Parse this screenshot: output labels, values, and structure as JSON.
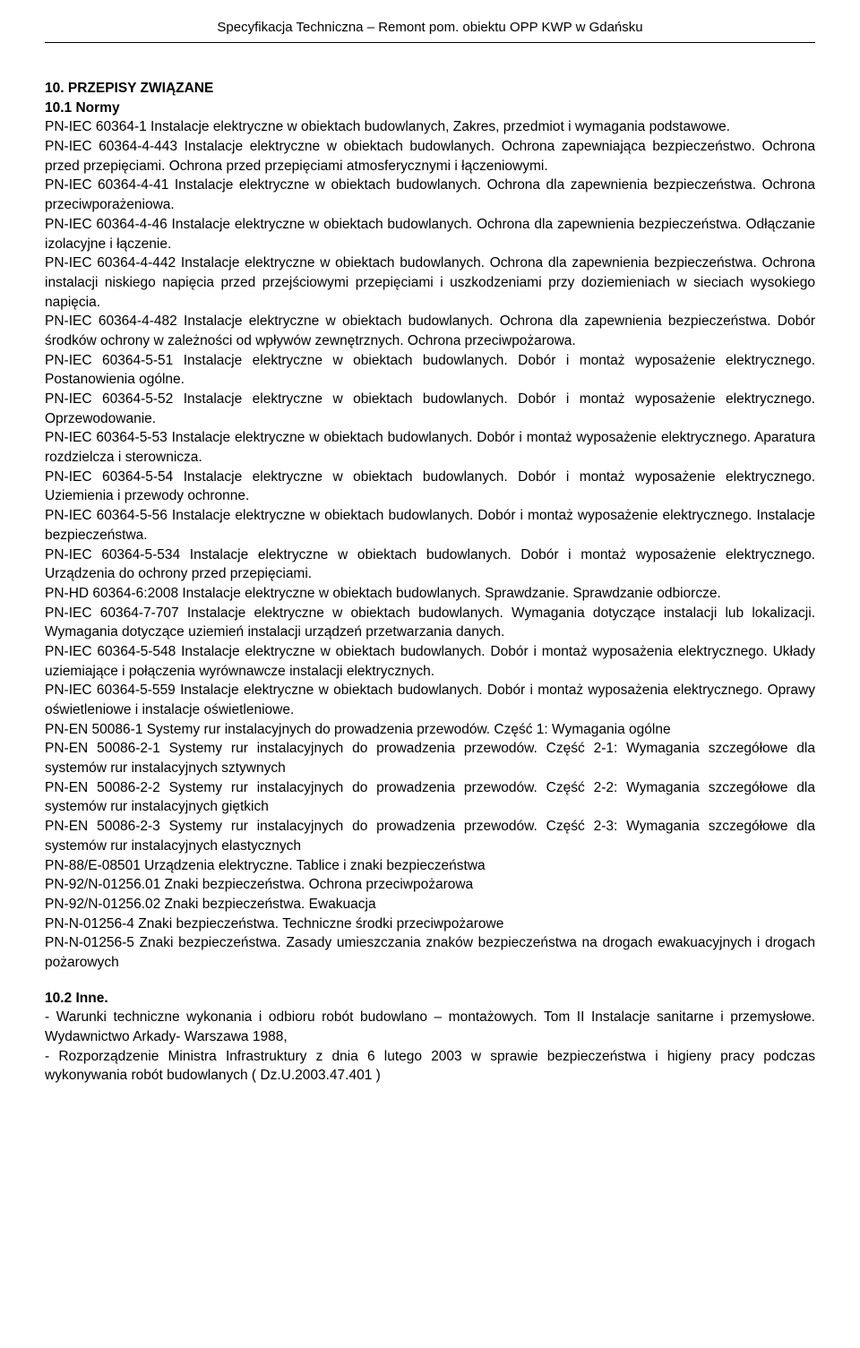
{
  "header": "Specyfikacja Techniczna – Remont pom. obiektu OPP KWP w Gdańsku",
  "section10": {
    "title": "10. PRZEPISY ZWIĄZANE",
    "sub1": {
      "title": "10.1 Normy",
      "paragraphs": [
        "PN-IEC 60364-1 Instalacje elektryczne w obiektach budowlanych, Zakres, przedmiot i wymagania podstawowe.",
        "PN-IEC 60364-4-443 Instalacje elektryczne w obiektach budowlanych. Ochrona zapewniająca bezpieczeństwo. Ochrona przed przepięciami. Ochrona przed przepięciami atmosferycznymi i łączeniowymi.",
        "PN-IEC 60364-4-41 Instalacje elektryczne w obiektach budowlanych. Ochrona dla zapewnienia bezpieczeństwa. Ochrona przeciwporażeniowa.",
        "PN-IEC 60364-4-46 Instalacje elektryczne w obiektach budowlanych. Ochrona dla zapewnienia bezpieczeństwa. Odłączanie izolacyjne i łączenie.",
        "PN-IEC 60364-4-442 Instalacje elektryczne w obiektach budowlanych. Ochrona dla zapewnienia bezpieczeństwa. Ochrona instalacji niskiego napięcia przed przejściowymi przepięciami i uszkodzeniami przy doziemieniach w sieciach wysokiego napięcia.",
        "PN-IEC 60364-4-482 Instalacje elektryczne w obiektach budowlanych. Ochrona dla zapewnienia bezpieczeństwa. Dobór środków ochrony w zależności od wpływów zewnętrznych. Ochrona przeciwpożarowa.",
        "PN-IEC 60364-5-51 Instalacje elektryczne w obiektach budowlanych. Dobór i montaż wyposażenie elektrycznego. Postanowienia ogólne.",
        "PN-IEC 60364-5-52 Instalacje elektryczne w obiektach budowlanych. Dobór i montaż wyposażenie elektrycznego. Oprzewodowanie.",
        "PN-IEC 60364-5-53 Instalacje elektryczne w obiektach budowlanych. Dobór i montaż wyposażenie elektrycznego. Aparatura rozdzielcza i sterownicza.",
        "PN-IEC 60364-5-54 Instalacje elektryczne w obiektach budowlanych. Dobór i montaż wyposażenie elektrycznego. Uziemienia i przewody ochronne.",
        "PN-IEC 60364-5-56 Instalacje elektryczne w obiektach budowlanych. Dobór i montaż wyposażenie elektrycznego. Instalacje bezpieczeństwa.",
        "PN-IEC 60364-5-534 Instalacje elektryczne w obiektach budowlanych. Dobór i montaż wyposażenie elektrycznego. Urządzenia do ochrony przed przepięciami.",
        "PN-HD 60364-6:2008 Instalacje elektryczne w obiektach budowlanych. Sprawdzanie. Sprawdzanie odbiorcze.",
        "PN-IEC 60364-7-707 Instalacje elektryczne w obiektach budowlanych. Wymagania dotyczące instalacji lub lokalizacji. Wymagania dotyczące uziemień instalacji urządzeń przetwarzania danych.",
        "PN-IEC 60364-5-548 Instalacje elektryczne w obiektach budowlanych. Dobór i montaż wyposażenia elektrycznego. Układy uziemiające i połączenia wyrównawcze instalacji elektrycznych.",
        "PN-IEC 60364-5-559 Instalacje elektryczne w obiektach budowlanych. Dobór i montaż wyposażenia elektrycznego. Oprawy oświetleniowe i instalacje oświetleniowe.",
        "PN-EN 50086-1 Systemy rur instalacyjnych do prowadzenia przewodów. Część 1: Wymagania ogólne",
        "PN-EN 50086-2-1 Systemy rur instalacyjnych do prowadzenia przewodów. Część 2-1: Wymagania szczegółowe dla systemów rur instalacyjnych sztywnych",
        "PN-EN 50086-2-2 Systemy rur instalacyjnych do prowadzenia przewodów. Część 2-2: Wymagania szczegółowe dla systemów rur instalacyjnych giętkich",
        "PN-EN 50086-2-3 Systemy rur instalacyjnych do prowadzenia przewodów. Część 2-3: Wymagania szczegółowe dla systemów rur instalacyjnych elastycznych",
        "PN-88/E-08501 Urządzenia elektryczne. Tablice i znaki bezpieczeństwa",
        "PN-92/N-01256.01 Znaki bezpieczeństwa. Ochrona przeciwpożarowa",
        "PN-92/N-01256.02 Znaki bezpieczeństwa. Ewakuacja",
        "PN-N-01256-4 Znaki bezpieczeństwa. Techniczne środki przeciwpożarowe",
        "PN-N-01256-5 Znaki bezpieczeństwa. Zasady umieszczania znaków bezpieczeństwa na drogach ewakuacyjnych i drogach pożarowych"
      ]
    },
    "sub2": {
      "title": "10.2 Inne.",
      "paragraphs": [
        "- Warunki techniczne wykonania i odbioru robót budowlano – montażowych. Tom II Instalacje sanitarne i przemysłowe. Wydawnictwo Arkady- Warszawa 1988,",
        "- Rozporządzenie Ministra Infrastruktury z dnia 6 lutego 2003 w sprawie bezpieczeństwa i higieny pracy  podczas wykonywania robót budowlanych ( Dz.U.2003.47.401 )"
      ]
    }
  }
}
